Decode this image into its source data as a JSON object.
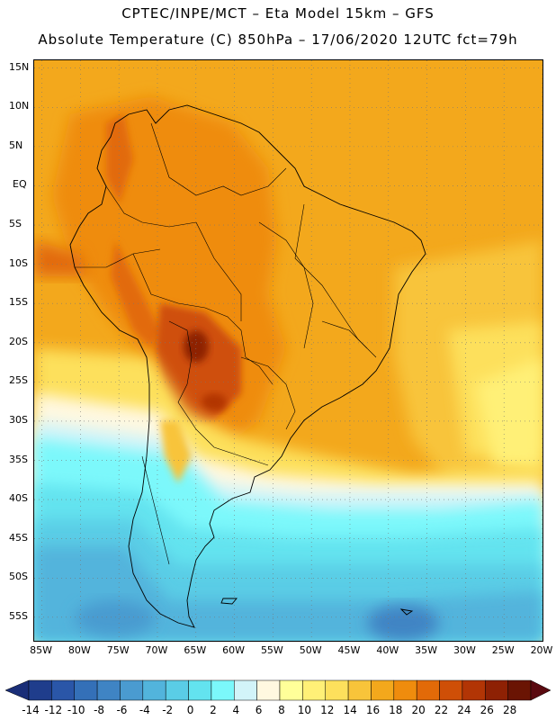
{
  "header": {
    "line1": "CPTEC/INPE/MCT  –  Eta Model 15km  –  GFS",
    "line2": "Absolute Temperature (C) 850hPa  –  17/06/2020 12UTC fct=79h"
  },
  "map": {
    "lat_labels": [
      "15N",
      "10N",
      "5N",
      "EQ",
      "5S",
      "10S",
      "15S",
      "20S",
      "25S",
      "30S",
      "35S",
      "40S",
      "45S",
      "50S",
      "55S"
    ],
    "lon_labels": [
      "85W",
      "80W",
      "75W",
      "70W",
      "65W",
      "60W",
      "55W",
      "50W",
      "45W",
      "40W",
      "35W",
      "30W",
      "25W",
      "20W"
    ],
    "lat_range": [
      16,
      -58
    ],
    "lon_range": [
      -86,
      -20
    ]
  },
  "colorbar": {
    "labels": [
      "-14",
      "-12",
      "-10",
      "-8",
      "-6",
      "-4",
      "-2",
      "0",
      "2",
      "4",
      "6",
      "8",
      "10",
      "12",
      "14",
      "16",
      "18",
      "20",
      "22",
      "24",
      "26",
      "28"
    ],
    "colors": [
      "#1f3d8c",
      "#2a56a8",
      "#3470b8",
      "#3f84c4",
      "#4a9bd0",
      "#52b4dc",
      "#5acde6",
      "#63e3ef",
      "#7bf8fb",
      "#d2f4f9",
      "#fff8e0",
      "#ffff99",
      "#fff077",
      "#fde05c",
      "#f8c43a",
      "#f3a81c",
      "#ef8c0d",
      "#e26a08",
      "#cf4f07",
      "#b23505",
      "#8e2104",
      "#6a1403"
    ]
  }
}
